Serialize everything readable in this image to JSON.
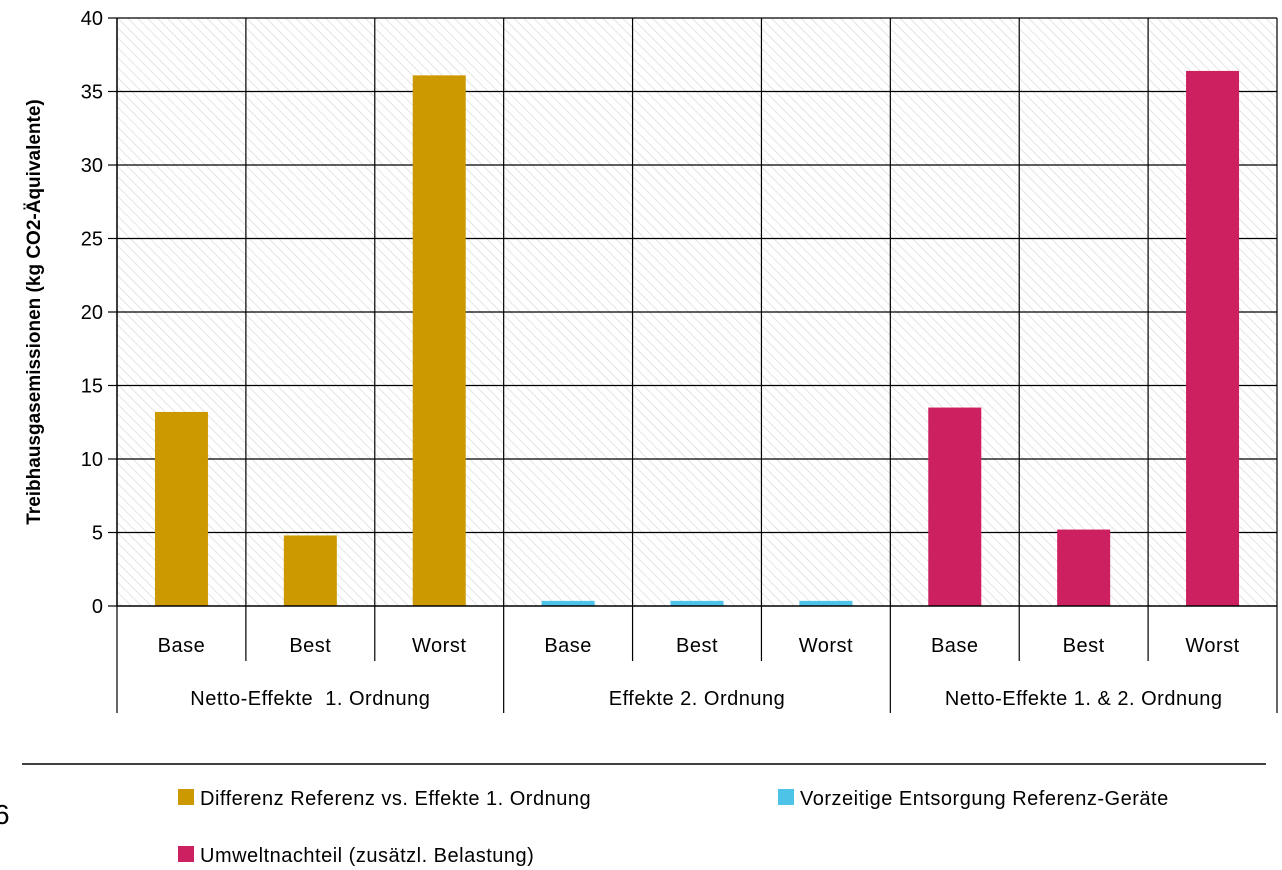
{
  "chart_data": {
    "type": "bar",
    "title": "",
    "ylabel": "Treibhausgasemissionen  (kg CO2-Äquivalente)",
    "xlabel": "",
    "ylim": [
      0,
      40
    ],
    "yticks": [
      0,
      5,
      10,
      15,
      20,
      25,
      30,
      35,
      40
    ],
    "grid": true,
    "legend_position": "bottom",
    "groups": [
      "Netto-Effekte  1. Ordnung",
      "Effekte 2. Ordnung",
      "Netto-Effekte 1. & 2. Ordnung"
    ],
    "categories": [
      "Base",
      "Best",
      "Worst",
      "Base",
      "Best",
      "Worst",
      "Base",
      "Best",
      "Worst"
    ],
    "bar_colors": [
      "#CC9900",
      "#CC9900",
      "#CC9900",
      "#4DC3E8",
      "#4DC3E8",
      "#4DC3E8",
      "#CC2060",
      "#CC2060",
      "#CC2060"
    ],
    "series": [
      {
        "name": "Differenz Referenz vs. Effekte 1. Ordnung",
        "color": "#CC9900",
        "values": [
          13.2,
          4.8,
          36.1,
          null,
          null,
          null,
          null,
          null,
          null
        ]
      },
      {
        "name": "Vorzeitige Entsorgung Referenz-Geräte",
        "color": "#4DC3E8",
        "values": [
          null,
          null,
          null,
          0.35,
          0.35,
          0.35,
          null,
          null,
          null
        ]
      },
      {
        "name": "Umweltnachteil (zusätzl. Belastung)",
        "color": "#CC2060",
        "values": [
          null,
          null,
          null,
          null,
          null,
          null,
          13.5,
          5.2,
          36.4
        ]
      }
    ]
  },
  "page_marker": "6"
}
